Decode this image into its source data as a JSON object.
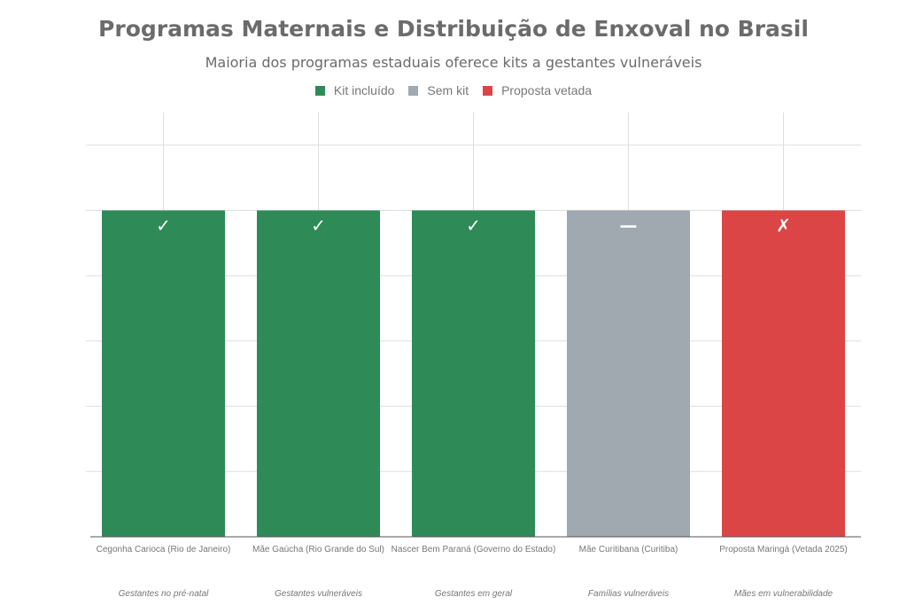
{
  "chart_data": {
    "type": "bar",
    "title": "Programas Maternais e Distribuição de Enxoval no Brasil",
    "subtitle": "Maioria dos programas estaduais oferece kits a gestantes vulneráveis",
    "legend": [
      {
        "label": "Kit incluído",
        "color": "#2e8b57"
      },
      {
        "label": "Sem kit",
        "color": "#a0a8b0"
      },
      {
        "label": "Proposta vetada",
        "color": "#dc4545"
      }
    ],
    "legend_position": "top-center",
    "categories": [
      "Cegonha Carioca (Rio de Janeiro)",
      "Mãe Gaúcha (Rio Grande do Sul)",
      "Nascer Bem Paraná (Governo do Estado)",
      "Mãe Curitibana (Curitiba)",
      "Proposta Maringá (Vetada 2025)"
    ],
    "audiences": [
      "Gestantes no pré-natal",
      "Gestantes vulneráveis",
      "Gestantes em geral",
      "Famílias vulneráveis",
      "Mães em vulnerabilidade"
    ],
    "values": [
      1,
      1,
      1,
      1,
      1
    ],
    "status": [
      "Kit incluído",
      "Kit incluído",
      "Kit incluído",
      "Sem kit",
      "Proposta vetada"
    ],
    "marks": [
      "✓",
      "✓",
      "✓",
      "—",
      "✗"
    ],
    "colors": [
      "#2e8b57",
      "#2e8b57",
      "#2e8b57",
      "#a0a8b0",
      "#dc4545"
    ],
    "ylim": [
      0,
      1.3
    ],
    "yticks": [
      0,
      0.2,
      0.4,
      0.6,
      0.8,
      1.0,
      1.2
    ],
    "grid": true,
    "xlabel": "",
    "ylabel": ""
  }
}
